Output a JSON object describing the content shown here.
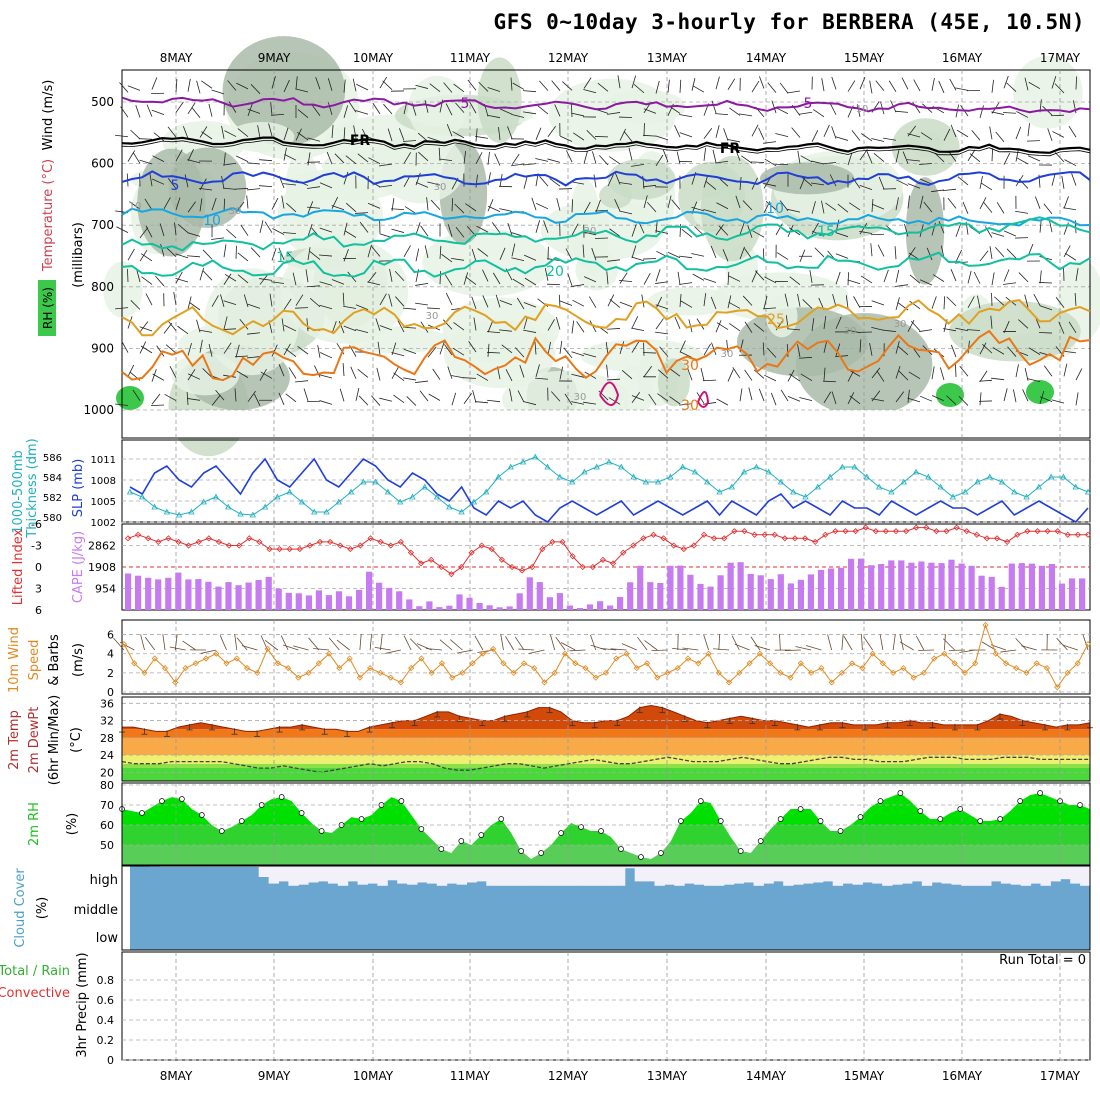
{
  "title": "GFS 0~10day 3-hourly for BERBERA (45E, 10.5N)",
  "dates": [
    "8MAY",
    "9MAY",
    "10MAY",
    "11MAY",
    "12MAY",
    "13MAY",
    "14MAY",
    "15MAY",
    "16MAY",
    "17MAY"
  ],
  "colors": {
    "purple": "#8a1aa0",
    "black": "#000000",
    "blue": "#1f3fd8",
    "lightblue": "#17a6e0",
    "teal": "#12c0a0",
    "gold": "#e0a020",
    "orange": "#e87818",
    "magenta": "#d0107a",
    "rhlight": "#e6f2e4",
    "rhmid": "#c9dcc6",
    "rhdark": "#a9bba8",
    "rhgreen": "#3cc84a",
    "cape": "#c77bf0",
    "li": "#e03030",
    "wind": "#e08a20",
    "tempTop": "#d24a0a",
    "tempA": "#f07818",
    "tempB": "#f8aa48",
    "tempC": "#f0f070",
    "tempD": "#8ee048",
    "rhA": "#00e000",
    "rhB": "#44cc44",
    "rhC": "#6acb6a",
    "cloud": "#6aa6d0",
    "cloudEmpty": "#f2f0f8"
  },
  "upper": {
    "left_labels": {
      "rh": "RH (%)",
      "temp": "Temperature (°C)",
      "wind": "Wind (m/s)"
    },
    "axis_label": "(millibars)",
    "ticks": [
      "500",
      "600",
      "700",
      "800",
      "900",
      "1000"
    ],
    "contour_labels": [
      "5",
      "FR",
      "FR",
      "5",
      "10",
      "10",
      "15",
      "15",
      "20",
      "25",
      "30",
      "30",
      "10",
      "10",
      "30",
      "30",
      "30",
      "30",
      "30",
      "30",
      "30",
      "30"
    ]
  },
  "slp": {
    "left_label_a": "1000-500mb",
    "left_label_b": "Thickness (dm)",
    "right_label": "SLP (mb)",
    "ticks_left": [
      "586",
      "584",
      "582",
      "580"
    ],
    "ticks_right": [
      "1011",
      "1008",
      "1005",
      "1002"
    ]
  },
  "cape": {
    "left_label": "Lifted Index",
    "right_label": "CAPE (J/kg)",
    "ticks_left": [
      "-6",
      "-3",
      "0",
      "3",
      "6"
    ],
    "ticks_right": [
      "2862",
      "1908",
      "954"
    ]
  },
  "wind10": {
    "label_a": "10m Wind",
    "label_b": "Speed",
    "label_c": "& Barbs",
    "unit": "(m/s)",
    "ticks": [
      "6",
      "4",
      "2",
      "0"
    ]
  },
  "temp2m": {
    "label_a": "2m Temp",
    "label_b": "2m DewPt",
    "label_c": "(6hr Min/Max)",
    "unit": "(°C)",
    "ticks": [
      "36",
      "32",
      "28",
      "24",
      "20"
    ]
  },
  "rh2m": {
    "label": "2m RH",
    "unit": "(%)",
    "ticks": [
      "80",
      "70",
      "60",
      "50"
    ]
  },
  "cloud": {
    "label": "Cloud Cover",
    "unit": "(%)",
    "levels": [
      "high",
      "middle",
      "low"
    ]
  },
  "precip": {
    "label_a": "Total / Rain",
    "label_b": "Convective",
    "label_c": "3hr Precip (mm)",
    "run_total": "Run Total = 0",
    "ticks": [
      "0.8",
      "0.6",
      "0.4",
      "0.2",
      "0"
    ]
  },
  "chart_data": {
    "type": "line",
    "location": "BERBERA (45E, 10.5N)",
    "x_labels": [
      "8MAY",
      "9MAY",
      "10MAY",
      "11MAY",
      "12MAY",
      "13MAY",
      "14MAY",
      "15MAY",
      "16MAY",
      "17MAY"
    ],
    "slp_mb": [
      1007,
      1006,
      1009,
      1010,
      1008,
      1007,
      1009,
      1010,
      1008,
      1006,
      1009,
      1011,
      1008,
      1007,
      1009,
      1011,
      1008,
      1007,
      1009,
      1011,
      1010,
      1008,
      1007,
      1009,
      1008,
      1006,
      1005,
      1007,
      1004,
      1003,
      1005,
      1004,
      1005,
      1003,
      1002,
      1004,
      1005,
      1004,
      1003,
      1004,
      1005,
      1003,
      1004,
      1005,
      1004,
      1003,
      1004,
      1005,
      1003,
      1005,
      1004,
      1003,
      1005,
      1006,
      1004,
      1005,
      1004,
      1003,
      1005,
      1004,
      1004,
      1003,
      1005,
      1004,
      1003,
      1004,
      1005,
      1004,
      1004,
      1003,
      1004,
      1005,
      1003,
      1004,
      1005,
      1004,
      1003,
      1002,
      1004
    ],
    "thickness_dm": [
      582.5,
      582,
      581,
      580.5,
      580.2,
      580.5,
      581.5,
      582,
      581,
      580.3,
      580.2,
      581,
      582,
      582.5,
      581.5,
      580.5,
      580.5,
      581.5,
      582.5,
      583.5,
      583.5,
      582.5,
      581.5,
      582,
      583,
      582,
      581,
      580.5,
      581.5,
      582.5,
      584,
      585,
      585.5,
      586,
      585,
      584,
      583.5,
      584.5,
      585,
      585.5,
      585,
      584,
      583.5,
      583.5,
      584,
      585,
      584.5,
      583.5,
      582.5,
      583,
      584.5,
      585,
      584.5,
      583.5,
      582.5,
      582,
      583,
      584,
      585,
      585,
      584,
      583,
      582.5,
      583.5,
      584.5,
      584,
      583,
      582,
      582.5,
      583.5,
      584,
      583.5,
      582.5,
      582,
      583,
      584,
      584,
      583,
      582.5
    ],
    "cape_jkg": [
      1620,
      1520,
      1430,
      1360,
      1430,
      1660,
      1360,
      1370,
      1250,
      1040,
      1240,
      1100,
      1220,
      1330,
      1470,
      950,
      760,
      740,
      650,
      870,
      660,
      830,
      610,
      890,
      1700,
      1210,
      980,
      830,
      470,
      170,
      380,
      130,
      190,
      690,
      540,
      310,
      210,
      120,
      160,
      740,
      1450,
      1240,
      570,
      750,
      200,
      90,
      250,
      390,
      200,
      580,
      1230,
      1960,
      1240,
      1200,
      1960,
      1970,
      1560,
      1160,
      1040,
      1540,
      2100,
      2120,
      1600,
      1540,
      1370,
      1590,
      1180,
      1340,
      1580,
      1780,
      1840,
      1870,
      2270,
      2280,
      1990,
      2040,
      2200,
      2200,
      2100,
      2150,
      2100,
      2080,
      2230,
      2060,
      1960,
      1520,
      1470,
      1030,
      2060,
      2080,
      2060,
      1960,
      2040,
      1170,
      1400,
      1400
    ],
    "lifted_index": [
      -4,
      -4.5,
      -4,
      -3.5,
      -4,
      -3.5,
      -3,
      -3.5,
      -4,
      -3.5,
      -3,
      -3,
      -4,
      -3.5,
      -2.5,
      -2.5,
      -2.5,
      -2.5,
      -3,
      -3.5,
      -3.5,
      -3,
      -2.5,
      -3,
      -4,
      -3.5,
      -3,
      -3.5,
      -2,
      -0.5,
      -1,
      0,
      1,
      0,
      -2,
      -3,
      -2.5,
      -1,
      0,
      0.5,
      0,
      -2.5,
      -3.5,
      -3.5,
      -1.5,
      0,
      0,
      -1,
      -0.5,
      -2,
      -3,
      -4,
      -4.5,
      -4,
      -3,
      -2.5,
      -3,
      -4.5,
      -4,
      -4,
      -5,
      -5,
      -4.5,
      -4.5,
      -4.5,
      -4,
      -4,
      -4,
      -3.5,
      -4.5,
      -5,
      -5,
      -5,
      -5.5,
      -5,
      -5,
      -5,
      -5,
      -5.5,
      -5.5,
      -5,
      -5,
      -5.5,
      -5,
      -4.5,
      -4,
      -4,
      -3.5,
      -4.5,
      -5,
      -5,
      -5,
      -5,
      -4.5,
      -4.5,
      -4.5
    ],
    "wind10_ms": [
      5,
      3,
      2,
      3.5,
      2.5,
      1,
      2.5,
      3,
      3.5,
      4,
      3,
      3.5,
      2.5,
      2,
      4.5,
      3,
      2.5,
      1.5,
      2,
      3,
      4,
      2.5,
      3.5,
      1.5,
      2.5,
      2,
      1.5,
      1,
      2.5,
      3.5,
      2,
      3,
      1.5,
      2,
      3,
      4,
      4.5,
      3,
      2,
      3,
      2.5,
      1,
      2,
      4,
      3,
      2.5,
      1.5,
      2,
      3.5,
      4,
      2.5,
      3,
      1.5,
      2,
      2.5,
      3.5,
      3,
      4,
      2,
      1,
      2,
      3,
      4,
      3,
      2,
      1.5,
      3,
      2,
      2.5,
      1,
      2,
      3,
      2.5,
      4,
      3,
      2,
      2.5,
      1.5,
      2,
      3.5,
      4,
      3,
      2,
      3,
      7,
      4,
      3,
      2.5,
      2,
      3,
      2.5,
      0.5,
      2,
      3,
      5
    ],
    "temp2m_c": [
      30.5,
      30.5,
      30,
      29.5,
      29.5,
      30.5,
      31,
      31.5,
      31,
      30.5,
      30,
      29.5,
      29.5,
      30,
      30.5,
      30.5,
      31,
      30.5,
      30,
      30,
      29.5,
      29.5,
      30.5,
      31,
      31.5,
      32,
      32,
      33,
      34,
      34,
      33,
      32.5,
      32,
      32,
      33,
      33.5,
      34,
      35,
      35,
      34,
      32,
      31.5,
      31.5,
      32,
      32,
      33,
      35,
      35.5,
      35,
      34,
      33,
      32,
      31.5,
      32,
      32.5,
      33,
      32.5,
      32,
      32,
      31.5,
      31,
      30.5,
      31,
      31.5,
      31.5,
      31,
      31,
      31,
      31.5,
      31.5,
      32,
      31.5,
      31.5,
      31,
      31,
      31,
      31,
      32,
      33.5,
      33,
      32,
      31.5,
      31,
      30.5,
      31,
      31,
      31.5
    ],
    "dewpt2m_c": [
      22.5,
      22,
      22,
      22,
      22.5,
      22.5,
      22.5,
      22.5,
      22.5,
      22,
      21.5,
      21,
      21,
      21.5,
      21,
      20.5,
      20,
      20.5,
      21,
      21.5,
      22,
      21.5,
      22,
      22.5,
      22.5,
      22,
      21,
      20.5,
      20.5,
      21,
      21.5,
      22,
      22,
      21.5,
      21,
      21.5,
      22,
      22.5,
      23,
      22.5,
      22,
      22,
      22.5,
      23,
      23.5,
      23,
      22.5,
      22.5,
      22.5,
      23,
      23.5,
      23,
      22.5,
      22,
      22,
      22.5,
      23,
      23.5,
      23.5,
      23,
      23,
      22.5,
      22.5,
      22.5,
      23,
      23.5,
      23.5,
      23.5,
      23,
      23,
      23,
      23.5,
      23.5,
      23.5,
      23,
      23,
      23,
      23,
      23
    ],
    "rh2m_pct": [
      68,
      67,
      66,
      69,
      72,
      74,
      73,
      68,
      65,
      60,
      57,
      59,
      62,
      65,
      70,
      73,
      74,
      72,
      66,
      61,
      57,
      56,
      60,
      64,
      63,
      65,
      70,
      74,
      72,
      65,
      58,
      53,
      48,
      46,
      52,
      50,
      55,
      60,
      63,
      56,
      47,
      43,
      46,
      50,
      56,
      61,
      59,
      57,
      57,
      54,
      48,
      46,
      44,
      43,
      46,
      52,
      62,
      66,
      72,
      71,
      62,
      54,
      47,
      46,
      52,
      58,
      63,
      68,
      68,
      68,
      62,
      57,
      57,
      60,
      64,
      69,
      72,
      74,
      76,
      72,
      67,
      63,
      63,
      66,
      68,
      65,
      62,
      62,
      63,
      67,
      72,
      75,
      76,
      74,
      72,
      70,
      70,
      68
    ],
    "cloud_high_pct": [
      98,
      98,
      97,
      96,
      96,
      96,
      96,
      96,
      96,
      96,
      96,
      96,
      96,
      50,
      20,
      30,
      10,
      15,
      25,
      30,
      20,
      10,
      30,
      15,
      20,
      10,
      35,
      20,
      15,
      25,
      20,
      10,
      20,
      15,
      25,
      30,
      10,
      10,
      10,
      10,
      10,
      10,
      10,
      10,
      10,
      10,
      10,
      10,
      10,
      10,
      90,
      30,
      30,
      10,
      15,
      10,
      20,
      15,
      10,
      10,
      15,
      20,
      25,
      10,
      20,
      30,
      10,
      15,
      20,
      25,
      30,
      10,
      20,
      15,
      25,
      20,
      10,
      15,
      20,
      30,
      10,
      25,
      20,
      15,
      10,
      10,
      10,
      30,
      20,
      15,
      10,
      20,
      10,
      30,
      40,
      20,
      10
    ],
    "precip_mm": [],
    "ylim_pressure": [
      1000,
      450
    ],
    "ylim_slp": [
      1002,
      1012
    ],
    "ylim_thickness": [
      579.5,
      586.5
    ],
    "ylim_lifted_index": [
      6,
      -6
    ],
    "ylim_cape": [
      0,
      3816
    ],
    "ylim_wind": [
      0,
      7
    ],
    "ylim_temp": [
      18,
      37
    ],
    "ylim_rh": [
      40,
      80
    ],
    "ylim_precip": [
      0,
      1
    ]
  }
}
